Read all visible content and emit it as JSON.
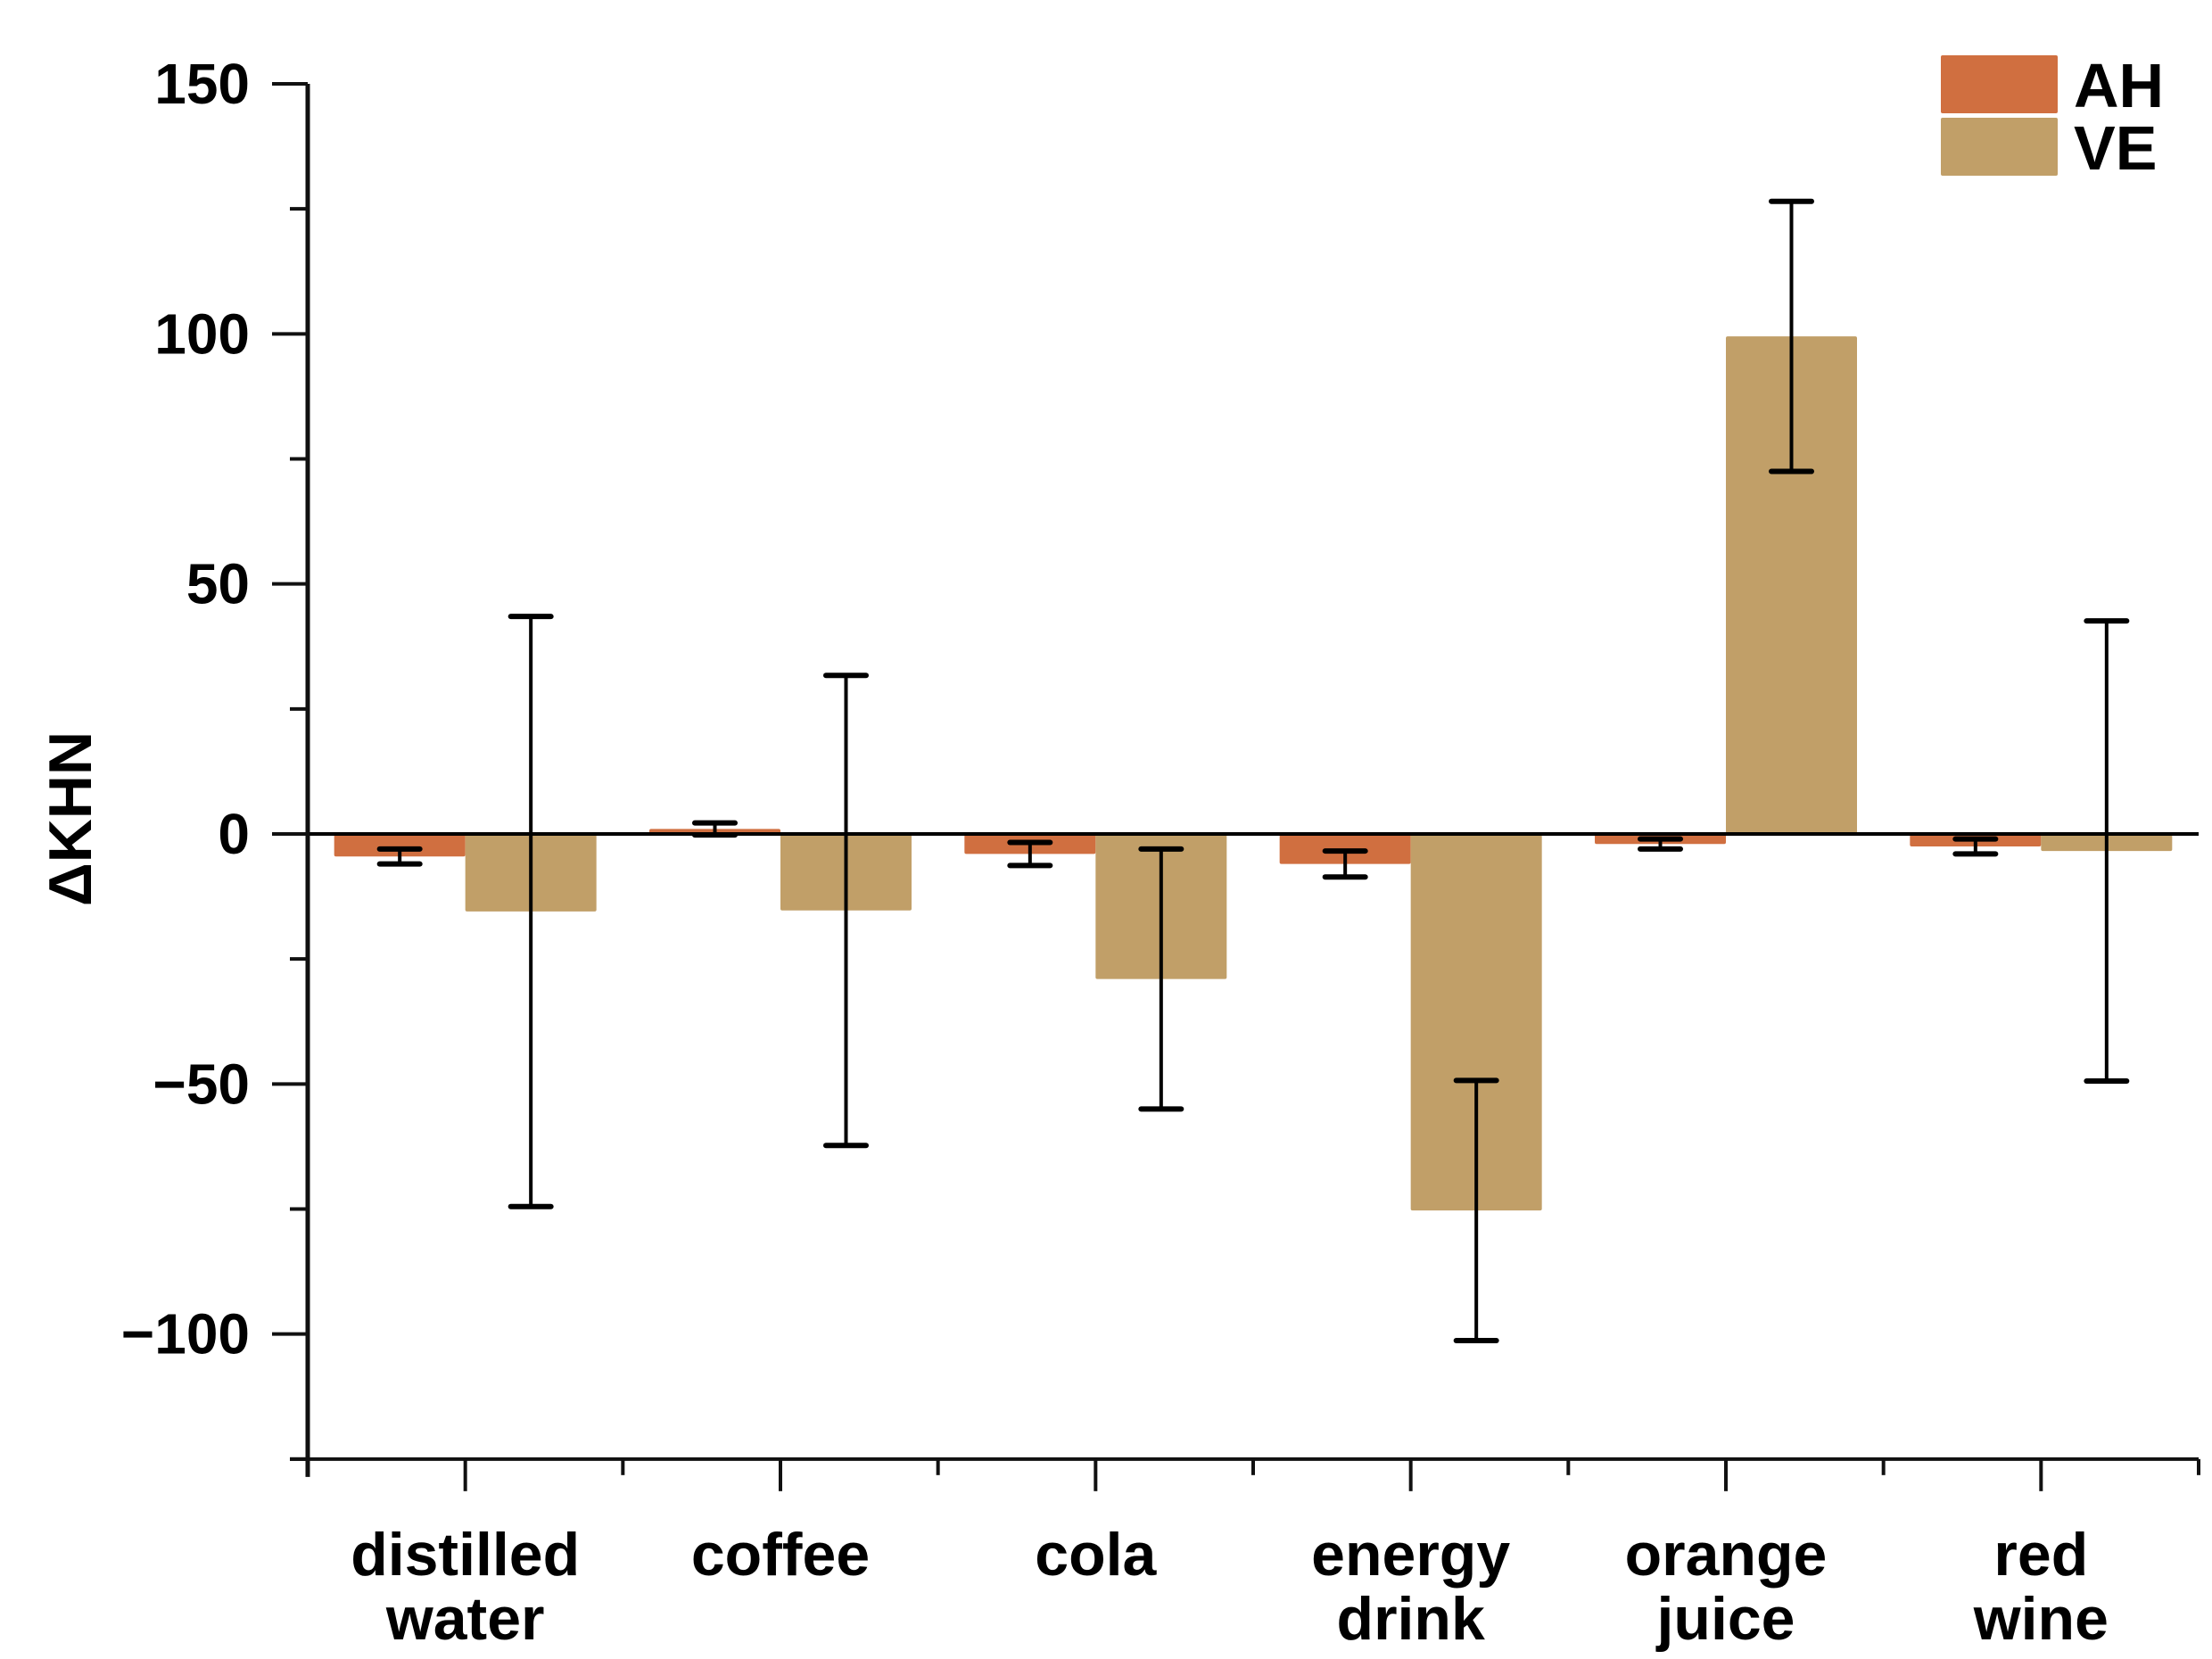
{
  "chart_data": {
    "type": "bar",
    "title": "",
    "xlabel": "",
    "ylabel": "ΔKHN",
    "ylim": [
      -125,
      150
    ],
    "yticks_major": [
      150,
      100,
      50,
      0,
      -50,
      -100
    ],
    "ytick_labels": [
      "150",
      "100",
      "50",
      "0",
      "−50",
      "−100"
    ],
    "yticks_minor": [
      125,
      75,
      25,
      -25,
      -75,
      -125
    ],
    "grid": false,
    "legend_position": "top-right",
    "categories": [
      [
        "distilled",
        "water"
      ],
      [
        "coffee"
      ],
      [
        "cola"
      ],
      [
        "energy",
        "drink"
      ],
      [
        "orange",
        "juice"
      ],
      [
        "red",
        "wine"
      ]
    ],
    "series": [
      {
        "name": "AH",
        "color": "#D06F40",
        "values": [
          -4.5,
          1.0,
          -4.0,
          -6.0,
          -2.0,
          -2.5
        ],
        "errors": [
          1.5,
          1.2,
          2.3,
          2.6,
          1.0,
          1.5
        ]
      },
      {
        "name": "VE",
        "color": "#C19F68",
        "values": [
          -15.5,
          -15.3,
          -29.0,
          -75.3,
          99.5,
          -3.4
        ],
        "errors": [
          59.0,
          47.0,
          26.0,
          26.0,
          27.0,
          46.0
        ]
      }
    ]
  }
}
